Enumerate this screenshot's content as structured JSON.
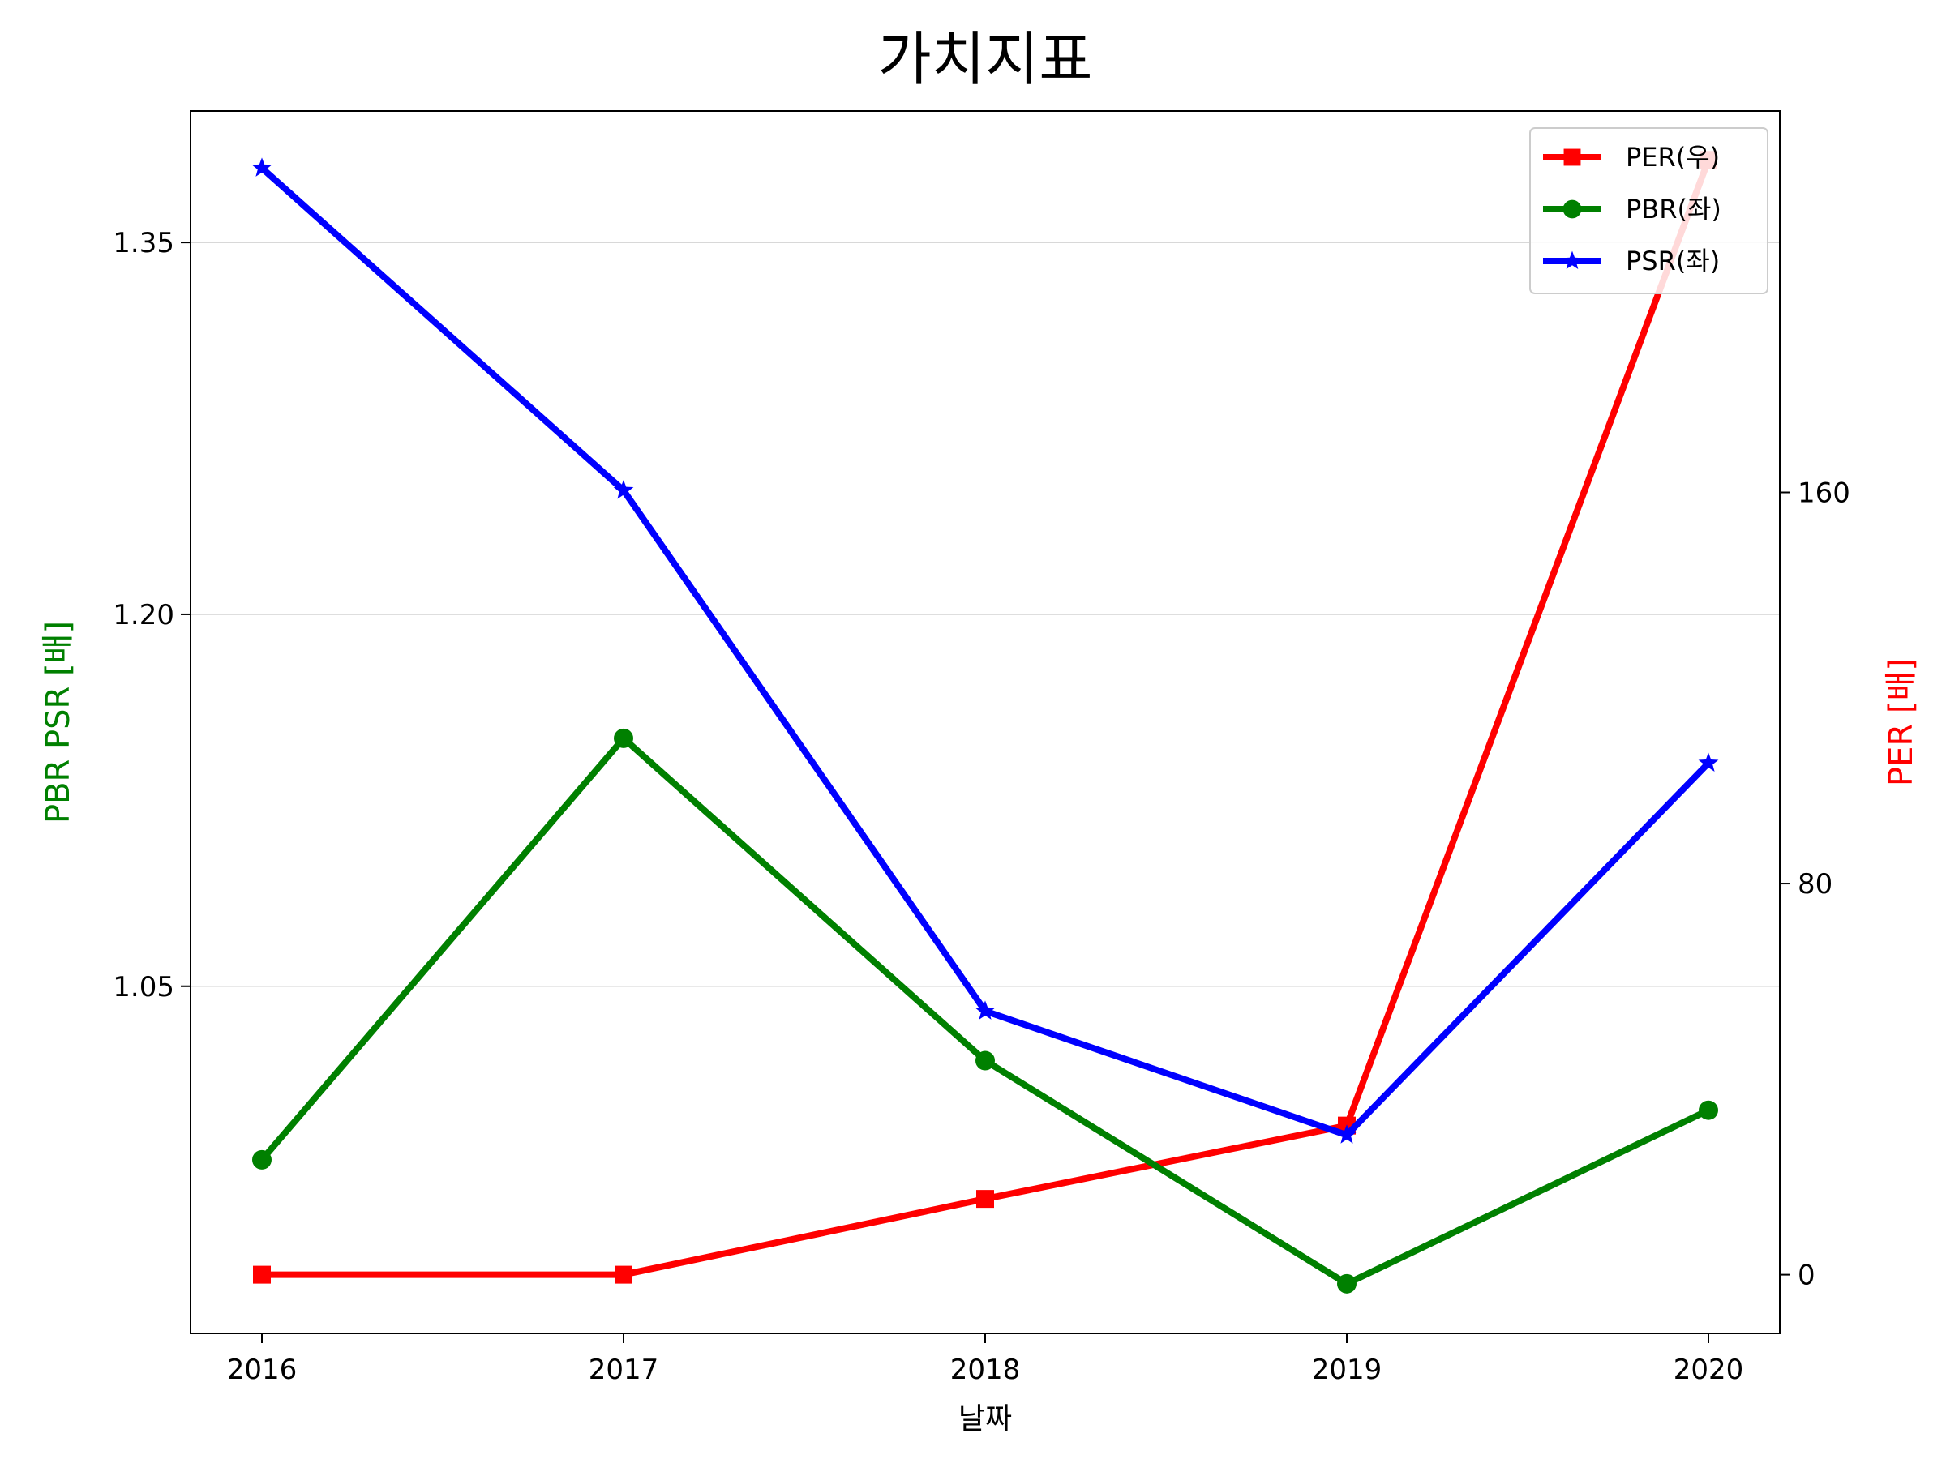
{
  "chart_data": {
    "type": "line",
    "title": "가치지표",
    "xlabel": "날짜",
    "ylabel_left": "PBR PSR [배]",
    "ylabel_right": "PER [배]",
    "categories": [
      "2016",
      "2017",
      "2018",
      "2019",
      "2020"
    ],
    "left_axis": {
      "ylim": [
        0.91,
        1.403
      ],
      "ticks": [
        1.05,
        1.2,
        1.35
      ],
      "tick_labels": [
        "1.05",
        "1.20",
        "1.35"
      ],
      "grid": true
    },
    "right_axis": {
      "ylim": [
        -12,
        238
      ],
      "ticks": [
        0,
        80,
        160
      ],
      "tick_labels": [
        "0",
        "80",
        "160"
      ]
    },
    "series": [
      {
        "name": "PER(우)",
        "axis": "right",
        "color": "#ff0000",
        "marker": "square",
        "values": [
          0,
          0,
          15.5,
          30.5,
          228
        ]
      },
      {
        "name": "PBR(좌)",
        "axis": "left",
        "color": "#008000",
        "marker": "circle",
        "values": [
          0.98,
          1.15,
          1.02,
          0.93,
          1.0
        ]
      },
      {
        "name": "PSR(좌)",
        "axis": "left",
        "color": "#0000ff",
        "marker": "star",
        "values": [
          1.38,
          1.25,
          1.04,
          0.99,
          1.14
        ]
      }
    ],
    "legend_position": "upper right",
    "axis_label_colors": {
      "left": "#008000",
      "right": "#ff0000"
    }
  }
}
